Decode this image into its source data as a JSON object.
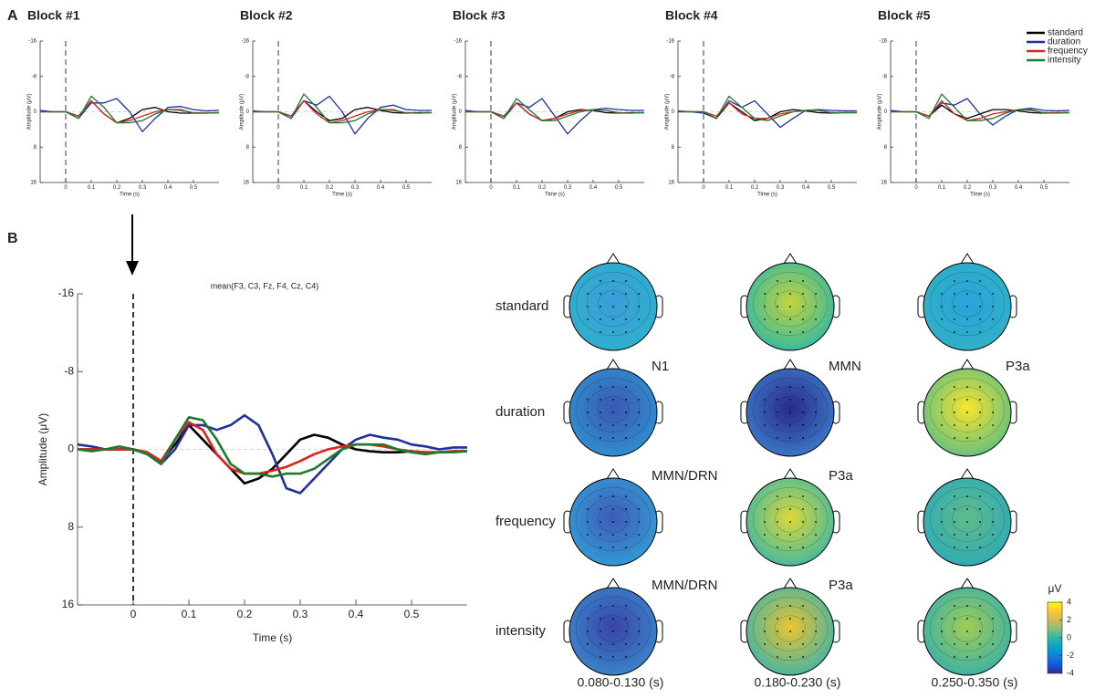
{
  "panel_labels": [
    "A",
    "B"
  ],
  "chart_data": [
    {
      "type": "line",
      "title": "Block #1",
      "xlabel": "Time (s)",
      "ylabel": "Amplitude (μV)",
      "x": [
        -0.1,
        -0.05,
        0,
        0.05,
        0.1,
        0.15,
        0.2,
        0.25,
        0.3,
        0.35,
        0.4,
        0.45,
        0.5,
        0.55,
        0.6
      ],
      "xlim": [
        -0.1,
        0.6
      ],
      "ylim": [
        16,
        -16
      ],
      "xticks": [
        0,
        0.1,
        0.2,
        0.3,
        0.4,
        0.5
      ],
      "yticks": [
        -16,
        -8,
        0,
        8,
        16
      ],
      "series": [
        {
          "color": "#000000",
          "values": [
            0,
            0,
            0,
            1,
            -2.5,
            0.5,
            2.5,
            1.5,
            -0.5,
            -1,
            0,
            0.3,
            0.3,
            0.3,
            0.2
          ]
        },
        {
          "color": "#1f2f9e",
          "values": [
            -0.3,
            0,
            0,
            1.5,
            -2,
            -2,
            -3,
            0,
            4.5,
            1.5,
            -1,
            -1.2,
            -0.5,
            -0.2,
            -0.3
          ]
        },
        {
          "color": "#e0231c",
          "values": [
            0,
            0,
            0,
            1,
            -2.5,
            0.5,
            2.5,
            2,
            1,
            0,
            -0.5,
            -0.3,
            0.2,
            0.3,
            0.2
          ]
        },
        {
          "color": "#1e7a2e",
          "values": [
            0,
            0,
            0,
            1.5,
            -3.5,
            -1,
            2.5,
            2.5,
            2,
            0.5,
            -0.5,
            -0.5,
            0.3,
            0.3,
            0.2
          ]
        }
      ]
    },
    {
      "type": "line",
      "title": "Block #2",
      "xlabel": "Time (s)",
      "ylabel": "Amplitude (μV)",
      "x": [
        -0.1,
        -0.05,
        0,
        0.05,
        0.1,
        0.15,
        0.2,
        0.25,
        0.3,
        0.35,
        0.4,
        0.45,
        0.5,
        0.55,
        0.6
      ],
      "xlim": [
        -0.1,
        0.6
      ],
      "ylim": [
        16,
        -16
      ],
      "xticks": [
        0,
        0.1,
        0.2,
        0.3,
        0.4,
        0.5
      ],
      "yticks": [
        -16,
        -8,
        0,
        8,
        16
      ],
      "series": [
        {
          "color": "#000000",
          "values": [
            0,
            0,
            0,
            1,
            -2.5,
            0,
            2,
            1.5,
            -0.5,
            -1,
            -0.3,
            0.2,
            0.3,
            0.2,
            0.2
          ]
        },
        {
          "color": "#1f2f9e",
          "values": [
            -0.2,
            0,
            0,
            1.5,
            -2.5,
            -1.5,
            -3.5,
            0,
            5,
            1.5,
            -1,
            -1.5,
            -0.5,
            -0.3,
            -0.3
          ]
        },
        {
          "color": "#e0231c",
          "values": [
            0,
            0,
            0,
            1,
            -2.5,
            0.5,
            2.5,
            2,
            1,
            0,
            -0.5,
            -0.3,
            0.2,
            0.3,
            0.2
          ]
        },
        {
          "color": "#1e7a2e",
          "values": [
            0,
            0,
            0,
            1.5,
            -4,
            -1,
            2.5,
            2.5,
            2,
            0.5,
            -0.5,
            -0.5,
            0.3,
            0.3,
            0.2
          ]
        }
      ]
    },
    {
      "type": "line",
      "title": "Block #3",
      "xlabel": "Time (s)",
      "ylabel": "Amplitude (μV)",
      "x": [
        -0.1,
        -0.05,
        0,
        0.05,
        0.1,
        0.15,
        0.2,
        0.25,
        0.3,
        0.35,
        0.4,
        0.45,
        0.5,
        0.55,
        0.6
      ],
      "xlim": [
        -0.1,
        0.6
      ],
      "ylim": [
        16,
        -16
      ],
      "xticks": [
        0,
        0.1,
        0.2,
        0.3,
        0.4,
        0.5
      ],
      "yticks": [
        -16,
        -8,
        0,
        8,
        16
      ],
      "series": [
        {
          "color": "#000000",
          "values": [
            0,
            0,
            0,
            1,
            -2,
            0.5,
            2,
            1.5,
            0,
            -0.5,
            -0.3,
            0.2,
            0.3,
            0.2,
            0.2
          ]
        },
        {
          "color": "#1f2f9e",
          "values": [
            -0.3,
            0,
            0,
            1.5,
            -2,
            -1,
            -3,
            1,
            5,
            2,
            -0.5,
            -0.8,
            -0.5,
            -0.3,
            -0.3
          ]
        },
        {
          "color": "#e0231c",
          "values": [
            0,
            0,
            0,
            1,
            -2,
            0.5,
            2,
            1.5,
            0.5,
            -0.3,
            -0.5,
            -0.3,
            0.2,
            0.3,
            0.2
          ]
        },
        {
          "color": "#1e7a2e",
          "values": [
            0,
            0,
            0,
            1.5,
            -3,
            -0.5,
            2,
            2,
            1,
            0,
            -0.5,
            -0.3,
            0.3,
            0.3,
            0.2
          ]
        }
      ]
    },
    {
      "type": "line",
      "title": "Block #4",
      "xlabel": "Time (s)",
      "ylabel": "Amplitude (μV)",
      "x": [
        -0.1,
        -0.05,
        0,
        0.05,
        0.1,
        0.15,
        0.2,
        0.25,
        0.3,
        0.35,
        0.4,
        0.45,
        0.5,
        0.55,
        0.6
      ],
      "xlim": [
        -0.1,
        0.6
      ],
      "ylim": [
        16,
        -16
      ],
      "xticks": [
        0,
        0.1,
        0.2,
        0.3,
        0.4,
        0.5
      ],
      "yticks": [
        -16,
        -8,
        0,
        8,
        16
      ],
      "series": [
        {
          "color": "#000000",
          "values": [
            0,
            0,
            0,
            1.5,
            -2,
            0,
            2,
            1.5,
            0,
            -0.5,
            -0.2,
            0.2,
            0.3,
            0.2,
            0.2
          ]
        },
        {
          "color": "#1f2f9e",
          "values": [
            -0.2,
            0,
            0.3,
            1.5,
            -2.5,
            -1,
            -2.5,
            0.5,
            3.5,
            1.5,
            -0.3,
            -0.5,
            -0.3,
            -0.2,
            -0.2
          ]
        },
        {
          "color": "#e0231c",
          "values": [
            0,
            0,
            0,
            1,
            -2,
            0.5,
            1.5,
            1.5,
            0.5,
            0,
            -0.3,
            -0.3,
            0.2,
            0.2,
            0.2
          ]
        },
        {
          "color": "#1e7a2e",
          "values": [
            0,
            0,
            0,
            1.5,
            -3.5,
            -1,
            1.5,
            2,
            1,
            0,
            -0.3,
            -0.3,
            0.2,
            0.2,
            0.2
          ]
        }
      ]
    },
    {
      "type": "line",
      "title": "Block #5",
      "xlabel": "Time (s)",
      "ylabel": "Amplitude (μV)",
      "x": [
        -0.1,
        -0.05,
        0,
        0.05,
        0.1,
        0.15,
        0.2,
        0.25,
        0.3,
        0.35,
        0.4,
        0.45,
        0.5,
        0.55,
        0.6
      ],
      "xlim": [
        -0.1,
        0.6
      ],
      "ylim": [
        16,
        -16
      ],
      "xticks": [
        0,
        0.1,
        0.2,
        0.3,
        0.4,
        0.5
      ],
      "yticks": [
        -16,
        -8,
        0,
        8,
        16
      ],
      "legend": "upper right",
      "series": [
        {
          "name": "standard",
          "color": "#000000",
          "values": [
            0,
            0,
            0,
            1,
            -1.5,
            0.5,
            1.5,
            0.5,
            -0.5,
            -0.5,
            -0.2,
            0.2,
            0.3,
            0.2,
            0.2
          ]
        },
        {
          "name": "duration",
          "color": "#1f2f9e",
          "values": [
            -0.3,
            0,
            0,
            1,
            -2,
            -1.5,
            -3,
            0.5,
            3,
            1,
            -0.5,
            -0.8,
            -0.3,
            -0.2,
            -0.3
          ]
        },
        {
          "name": "frequency",
          "color": "#e0231c",
          "values": [
            0,
            0,
            0,
            1,
            -2.5,
            0.5,
            2,
            1.5,
            0.5,
            0,
            -0.5,
            -0.3,
            0.2,
            0.2,
            0.2
          ]
        },
        {
          "name": "intensity",
          "color": "#1e7a2e",
          "values": [
            0,
            0,
            0,
            1.5,
            -4,
            -1,
            2,
            2,
            1.5,
            0.3,
            -0.5,
            -0.5,
            0.3,
            0.3,
            0.2
          ]
        }
      ]
    },
    {
      "type": "line",
      "title": "mean(F3, C3, Fz, F4, Cz, C4)",
      "xlabel": "Time (s)",
      "ylabel": "Amplitude (μV)",
      "x": [
        -0.1,
        -0.075,
        -0.05,
        -0.025,
        0,
        0.025,
        0.05,
        0.075,
        0.1,
        0.125,
        0.15,
        0.175,
        0.2,
        0.225,
        0.25,
        0.275,
        0.3,
        0.325,
        0.35,
        0.375,
        0.4,
        0.425,
        0.45,
        0.475,
        0.5,
        0.525,
        0.55,
        0.575,
        0.6
      ],
      "xlim": [
        -0.1,
        0.6
      ],
      "ylim": [
        16,
        -16
      ],
      "xticks": [
        0,
        0.1,
        0.2,
        0.3,
        0.4,
        0.5
      ],
      "yticks": [
        -16,
        -8,
        0,
        8,
        16
      ],
      "series": [
        {
          "color": "#000000",
          "values": [
            0,
            0,
            0,
            0,
            0,
            0.3,
            1.2,
            -0.5,
            -2.5,
            -1,
            0.5,
            2,
            3.5,
            3,
            2,
            0.5,
            -1,
            -1.5,
            -1.2,
            -0.5,
            0,
            0.2,
            0.3,
            0.3,
            0.2,
            0.3,
            0.3,
            0.2,
            0.2
          ]
        },
        {
          "color": "#1f2f9e",
          "values": [
            -0.5,
            -0.3,
            0,
            0,
            0,
            0.5,
            1.5,
            0,
            -2.5,
            -2.5,
            -2,
            -2.5,
            -3.5,
            -2.5,
            0.5,
            4,
            4.5,
            3,
            1.5,
            0,
            -1,
            -1.5,
            -1.2,
            -1,
            -0.5,
            -0.3,
            0,
            -0.2,
            -0.2
          ]
        },
        {
          "color": "#e0231c",
          "values": [
            0,
            0,
            0,
            0,
            0,
            0.3,
            1.2,
            -1,
            -2.8,
            -2,
            0.5,
            2,
            2.5,
            2.5,
            2.2,
            1.8,
            1.2,
            0.5,
            0,
            -0.3,
            -0.5,
            -0.5,
            -0.3,
            0,
            0.2,
            0.3,
            0.3,
            0.2,
            0.2
          ]
        },
        {
          "color": "#1e7a2e",
          "values": [
            0,
            0.2,
            0,
            -0.3,
            0,
            0.5,
            1.5,
            -1,
            -3.3,
            -3,
            -1,
            1.5,
            2.5,
            2.5,
            2.8,
            2.5,
            2.5,
            2,
            1,
            0,
            -0.5,
            -0.5,
            -0.5,
            0,
            0.3,
            0.5,
            0.3,
            0.3,
            0.2
          ]
        }
      ]
    }
  ],
  "topomaps": {
    "column_labels": [
      "0.080-0.130 (s)",
      "0.180-0.230 (s)",
      "0.250-0.350 (s)"
    ],
    "rows": [
      {
        "label": "standard",
        "maps": [
          {
            "center_color": "#3a9ed8",
            "edge_color": "#2fb0cc"
          },
          {
            "center_color": "#c4d43e",
            "edge_color": "#2fb8a4"
          },
          {
            "center_color": "#2aa2dc",
            "edge_color": "#30b2c4"
          }
        ]
      },
      {
        "label": "duration",
        "maps": [
          {
            "annotation": "N1",
            "center_color": "#3b58b0",
            "edge_color": "#2f92d2"
          },
          {
            "annotation": "MMN",
            "center_color": "#2a2a86",
            "edge_color": "#3d7ccc"
          },
          {
            "annotation": "P3a",
            "center_color": "#fae52c",
            "edge_color": "#5cbe84"
          }
        ]
      },
      {
        "label": "frequency",
        "maps": [
          {
            "annotation": "MMN/DRN",
            "center_color": "#3f5ab6",
            "edge_color": "#339ed6"
          },
          {
            "annotation": "P3a",
            "center_color": "#dcd83a",
            "edge_color": "#3cb8a2"
          },
          {
            "center_color": "#60bc8a",
            "edge_color": "#2eaab8"
          }
        ]
      },
      {
        "label": "intensity",
        "maps": [
          {
            "annotation": "MMN/DRN",
            "center_color": "#3944a4",
            "edge_color": "#3a88ce"
          },
          {
            "annotation": "P3a",
            "center_color": "#ecc432",
            "edge_color": "#3cb4a8"
          },
          {
            "center_color": "#a2cc56",
            "edge_color": "#36b0aa"
          }
        ]
      }
    ],
    "colorbar": {
      "label": "μV",
      "lim": [
        -4,
        4
      ],
      "ticks": [
        4,
        2,
        0,
        -2,
        -4
      ]
    }
  }
}
